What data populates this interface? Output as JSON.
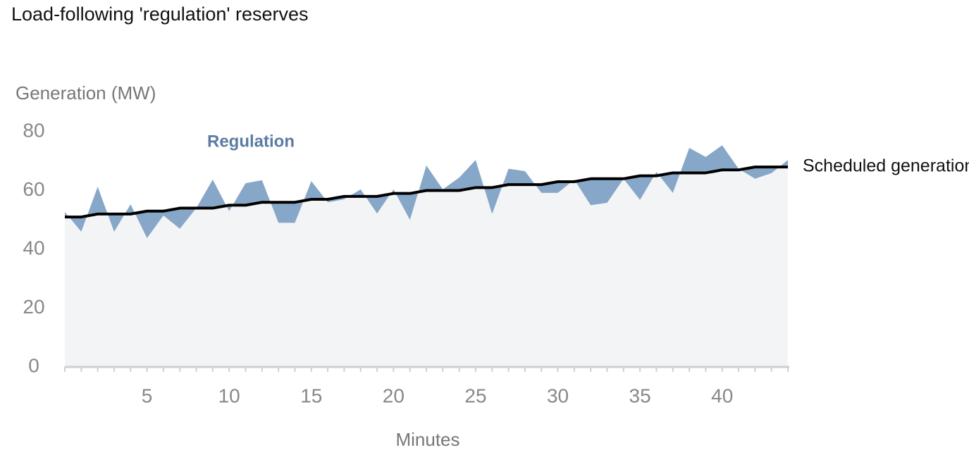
{
  "chart_data": {
    "type": "line",
    "title": "Load-following 'regulation' reserves",
    "y_label": "Generation (MW)",
    "x_label": "Minutes",
    "x": [
      0,
      1,
      2,
      3,
      4,
      5,
      6,
      7,
      8,
      9,
      10,
      11,
      12,
      13,
      14,
      15,
      16,
      17,
      18,
      19,
      20,
      21,
      22,
      23,
      24,
      25,
      26,
      27,
      28,
      29,
      30,
      31,
      32,
      33,
      34,
      35,
      36,
      37,
      38,
      39,
      40,
      41,
      42,
      43,
      44
    ],
    "series": [
      {
        "name": "Scheduled generation",
        "color": "#000000",
        "values": [
          51,
          51,
          52,
          52,
          52,
          53,
          53,
          54,
          54,
          54,
          55,
          55,
          56,
          56,
          56,
          57,
          57,
          58,
          58,
          58,
          59,
          59,
          60,
          60,
          60,
          61,
          61,
          62,
          62,
          62,
          63,
          63,
          64,
          64,
          64,
          65,
          65,
          66,
          66,
          66,
          67,
          67,
          68,
          68,
          68
        ]
      },
      {
        "name": "Regulation",
        "color": "#87a7c8",
        "values": [
          52.7,
          46,
          61.3,
          46,
          55.3,
          43.8,
          51.5,
          47,
          54,
          63.7,
          53,
          62.5,
          63.5,
          49,
          49,
          63.2,
          56,
          57,
          60.4,
          52.2,
          60.4,
          50,
          68.5,
          60.4,
          64.4,
          70.4,
          52,
          67.4,
          66.6,
          59.2,
          59.2,
          63.7,
          55,
          55.8,
          64,
          56.8,
          66.3,
          59.2,
          74.5,
          71.4,
          75.4,
          67.4,
          64,
          65.9,
          70.4
        ]
      }
    ],
    "xlim": [
      0,
      44
    ],
    "xticks": [
      5,
      10,
      15,
      20,
      25,
      30,
      35,
      40
    ],
    "ylim": [
      0,
      80
    ],
    "yticks": [
      0,
      20,
      40,
      60,
      80
    ]
  }
}
